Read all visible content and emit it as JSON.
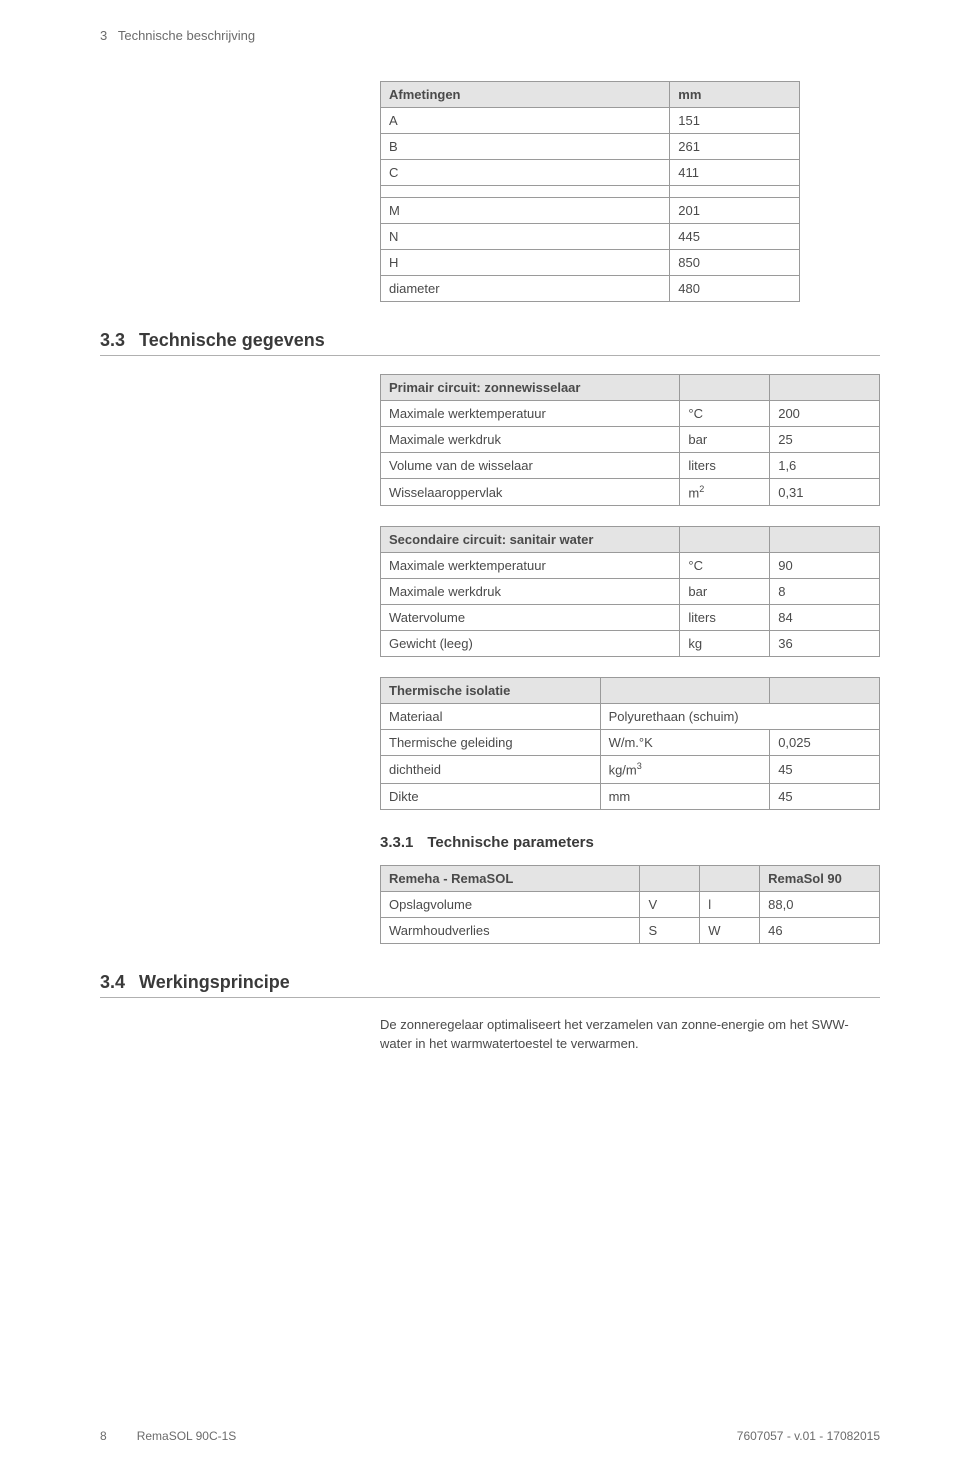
{
  "chapter": {
    "number": "3",
    "title": "Technische beschrijving"
  },
  "afmetingen": {
    "header": {
      "label": "Afmetingen",
      "unit": "mm"
    },
    "rows1": [
      {
        "label": "A",
        "value": "151"
      },
      {
        "label": "B",
        "value": "261"
      },
      {
        "label": "C",
        "value": "411"
      }
    ],
    "rows2": [
      {
        "label": "M",
        "value": "201"
      },
      {
        "label": "N",
        "value": "445"
      },
      {
        "label": "H",
        "value": "850"
      },
      {
        "label": "diameter",
        "value": "480"
      }
    ]
  },
  "section33": {
    "number": "3.3",
    "title": "Technische gegevens"
  },
  "primair": {
    "header": "Primair circuit: zonnewisselaar",
    "rows": [
      {
        "label": "Maximale werktemperatuur",
        "unit": "°C",
        "value": "200"
      },
      {
        "label": "Maximale werkdruk",
        "unit": "bar",
        "value": "25"
      },
      {
        "label": "Volume van de wisselaar",
        "unit": "liters",
        "value": "1,6"
      },
      {
        "label": "Wisselaaroppervlak",
        "unit": "m²",
        "value": "0,31"
      }
    ]
  },
  "secondaire": {
    "header": "Secondaire circuit: sanitair water",
    "rows": [
      {
        "label": "Maximale werktemperatuur",
        "unit": "°C",
        "value": "90"
      },
      {
        "label": "Maximale werkdruk",
        "unit": "bar",
        "value": "8"
      },
      {
        "label": "Watervolume",
        "unit": "liters",
        "value": "84"
      },
      {
        "label": "Gewicht (leeg)",
        "unit": "kg",
        "value": "36"
      }
    ]
  },
  "isolatie": {
    "header": "Thermische isolatie",
    "rows": [
      {
        "label": "Materiaal",
        "unit": "Polyurethaan (schuim)",
        "value": ""
      },
      {
        "label": "Thermische geleiding",
        "unit": "W/m.°K",
        "value": "0,025"
      },
      {
        "label": "dichtheid",
        "unit": "kg/m³",
        "value": "45"
      },
      {
        "label": "Dikte",
        "unit": "mm",
        "value": "45"
      }
    ]
  },
  "subsection331": {
    "number": "3.3.1",
    "title": "Technische parameters"
  },
  "params": {
    "header_left": "Remeha - RemaSOL",
    "header_right": "RemaSol 90",
    "rows": [
      {
        "label": "Opslagvolume",
        "sym": "V",
        "unit": "l",
        "value": "88,0"
      },
      {
        "label": "Warmhoudverlies",
        "sym": "S",
        "unit": "W",
        "value": "46"
      }
    ]
  },
  "section34": {
    "number": "3.4",
    "title": "Werkingsprincipe"
  },
  "body34": "De zonneregelaar optimaliseert het verzamelen van zonne-energie om het SWW-water in het warmwatertoestel te verwarmen.",
  "footer": {
    "page": "8",
    "product": "RemaSOL 90C-1S",
    "docref": "7607057 - v.01 - 17082015"
  }
}
